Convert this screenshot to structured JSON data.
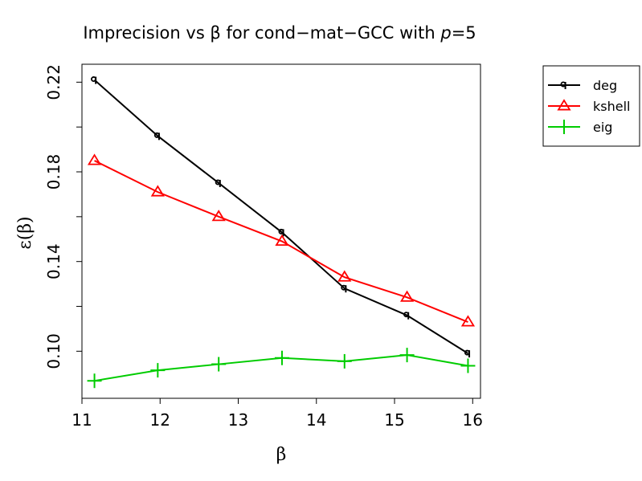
{
  "chart_data": {
    "type": "line",
    "title": "Imprecision vs β for cond−mat−GCC with p=5",
    "title_parts": {
      "before_p": "Imprecision vs β for cond−mat−GCC with ",
      "p_symbol": "p",
      "after_p": "=5"
    },
    "xlabel": "β",
    "ylabel": "ε(β)",
    "xlim": [
      11.0,
      16.1
    ],
    "ylim": [
      0.079,
      0.228
    ],
    "x_ticks": [
      11,
      12,
      13,
      14,
      15,
      16
    ],
    "x_tick_labels": [
      "11",
      "12",
      "13",
      "14",
      "15",
      "16"
    ],
    "y_ticks": [
      0.1,
      0.12,
      0.14,
      0.16,
      0.18,
      0.2,
      0.22
    ],
    "y_tick_labels": [
      "0.10",
      "",
      "0.14",
      "",
      "0.18",
      "",
      "0.22"
    ],
    "grid": false,
    "legend_position": "outside top-right",
    "x": [
      11.16,
      11.97,
      12.75,
      13.56,
      14.36,
      15.16,
      15.94
    ],
    "series": [
      {
        "name": "deg",
        "color": "#000000",
        "marker": "q",
        "values": [
          0.221,
          0.196,
          0.175,
          0.153,
          0.128,
          0.116,
          0.099
        ]
      },
      {
        "name": "kshell",
        "color": "#ff0000",
        "marker": "triangle",
        "values": [
          0.185,
          0.171,
          0.16,
          0.149,
          0.133,
          0.124,
          0.113
        ]
      },
      {
        "name": "eig",
        "color": "#00cc00",
        "marker": "plus",
        "values": [
          0.0868,
          0.0915,
          0.0942,
          0.097,
          0.0955,
          0.0983,
          0.0935
        ]
      }
    ]
  }
}
